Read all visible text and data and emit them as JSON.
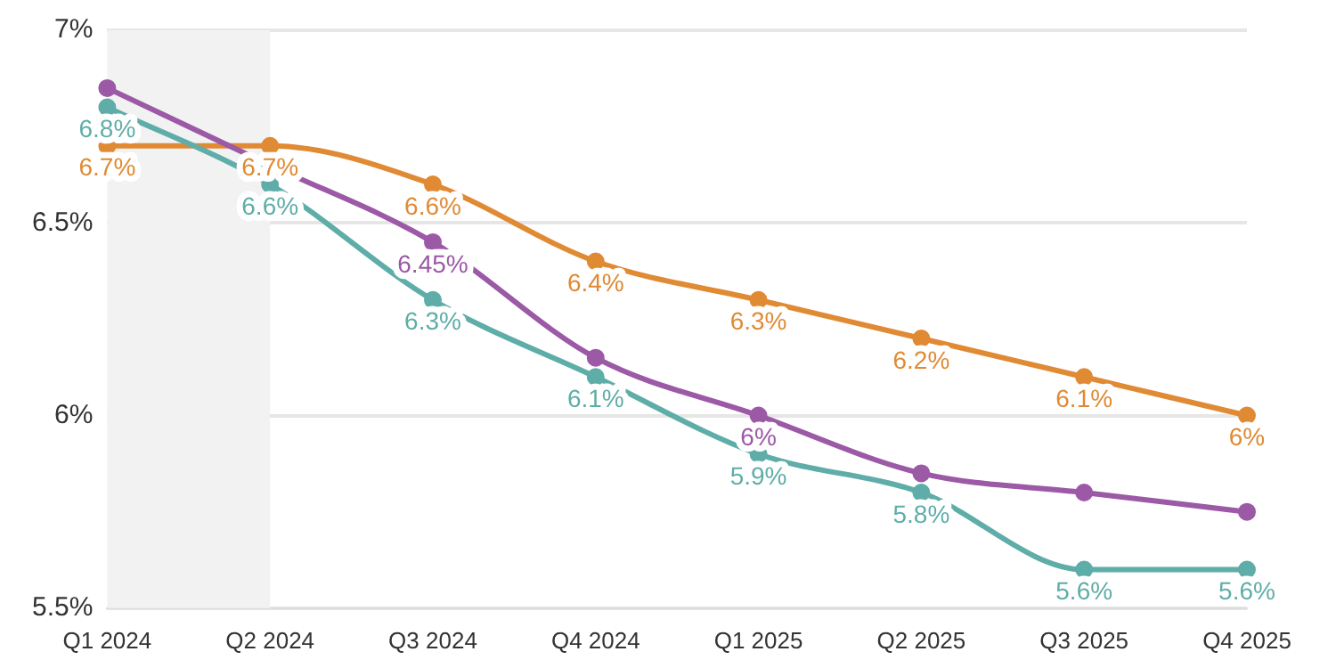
{
  "chart_data": {
    "type": "line",
    "categories": [
      "Q1 2024",
      "Q2 2024",
      "Q3 2024",
      "Q4 2024",
      "Q1 2025",
      "Q2 2025",
      "Q3 2025",
      "Q4 2025"
    ],
    "series": [
      {
        "color": "#9b59a6",
        "values": [
          6.85,
          6.65,
          6.45,
          6.15,
          6.0,
          5.85,
          5.8,
          5.75
        ],
        "value_labels": [
          null,
          null,
          "6.45%",
          null,
          "6%",
          null,
          null,
          null
        ]
      },
      {
        "color": "#5fada8",
        "values": [
          6.8,
          6.6,
          6.3,
          6.1,
          5.9,
          5.8,
          5.6,
          5.6
        ],
        "value_labels": [
          "6.8%",
          "6.6%",
          "6.3%",
          "6.1%",
          "5.9%",
          "5.8%",
          "5.6%",
          "5.6%"
        ]
      },
      {
        "color": "#e08a34",
        "values": [
          6.7,
          6.7,
          6.6,
          6.4,
          6.3,
          6.2,
          6.1,
          6.0
        ],
        "value_labels": [
          "6.7%",
          "6.7%",
          "6.6%",
          "6.4%",
          "6.3%",
          "6.2%",
          "6.1%",
          "6%"
        ]
      }
    ],
    "ylim": [
      5.5,
      7
    ],
    "yticks": [
      {
        "value": 5.5,
        "label": "5.5%"
      },
      {
        "value": 6,
        "label": "6%"
      },
      {
        "value": 6.5,
        "label": "6.5%"
      },
      {
        "value": 7,
        "label": "7%"
      }
    ],
    "bands": [
      {
        "axis": "x",
        "from": "Q1 2024",
        "to": "Q2 2024",
        "color": "#f2f2f2"
      }
    ],
    "grid": "y",
    "legend": false,
    "marker": "circle",
    "line_style": "solid"
  }
}
